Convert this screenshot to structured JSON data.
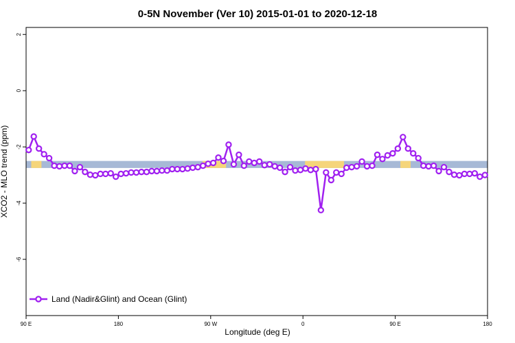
{
  "chart_data": {
    "type": "line",
    "title": "0-5N November (Ver 10)   2015-01-01 to 2020-12-18",
    "x_label": "Longitude (deg E)",
    "y_label": "XCO2 - MLO trend (ppm)",
    "xlim": [
      90,
      540
    ],
    "ylim": [
      -8,
      2.25
    ],
    "xticks": [
      {
        "value": 90,
        "label": "90 E"
      },
      180,
      {
        "value": 270,
        "label": "90 W"
      },
      {
        "value": 360,
        "label": "0"
      },
      {
        "value": 450,
        "label": "90 E"
      },
      {
        "value": 540,
        "label": "180"
      }
    ],
    "yticks": [
      2,
      0,
      -2,
      -4,
      -6
    ],
    "legend": "bottom-left",
    "band": {
      "range": [
        -2.75,
        -2.5
      ],
      "color": "#a7b9d6",
      "land_color": "#f5d57a",
      "land_segments": [
        [
          95,
          105
        ],
        [
          262,
          285
        ],
        [
          362,
          400
        ],
        [
          455,
          465
        ]
      ]
    },
    "x": [
      92.5,
      97.5,
      102.5,
      107.5,
      112.5,
      117.5,
      122.5,
      127.5,
      132.5,
      137.5,
      142.5,
      147.5,
      152.5,
      157.5,
      162.5,
      167.5,
      172.5,
      177.5,
      182.5,
      187.5,
      192.5,
      197.5,
      202.5,
      207.5,
      212.5,
      217.5,
      222.5,
      227.5,
      232.5,
      237.5,
      242.5,
      247.5,
      252.5,
      257.5,
      262.5,
      267.5,
      272.5,
      277.5,
      282.5,
      287.5,
      292.5,
      297.5,
      302.5,
      307.5,
      312.5,
      317.5,
      322.5,
      327.5,
      332.5,
      337.5,
      342.5,
      347.5,
      352.5,
      357.5,
      362.5,
      367.5,
      372.5,
      377.5,
      382.5,
      387.5,
      392.5,
      397.5,
      402.5,
      407.5,
      412.5,
      417.5,
      422.5,
      427.5,
      432.5,
      437.5,
      442.5,
      447.5,
      452.5,
      457.5,
      462.5,
      467.5,
      472.5,
      477.5,
      482.5,
      487.5,
      492.5,
      497.5,
      502.5,
      507.5,
      512.5,
      517.5,
      522.5,
      527.5,
      532.5,
      537.5
    ],
    "series": [
      {
        "name": "Land (Nadir&Glint) and Ocean (Glint)",
        "color": "#a020f0",
        "values": [
          -2.11,
          -1.63,
          -2.06,
          -2.26,
          -2.4,
          -2.67,
          -2.69,
          -2.67,
          -2.67,
          -2.86,
          -2.72,
          -2.89,
          -2.99,
          -3.01,
          -2.96,
          -2.96,
          -2.94,
          -3.06,
          -2.96,
          -2.94,
          -2.91,
          -2.91,
          -2.89,
          -2.89,
          -2.86,
          -2.86,
          -2.84,
          -2.84,
          -2.79,
          -2.79,
          -2.79,
          -2.77,
          -2.74,
          -2.72,
          -2.67,
          -2.6,
          -2.57,
          -2.38,
          -2.5,
          -1.92,
          -2.62,
          -2.28,
          -2.67,
          -2.52,
          -2.57,
          -2.52,
          -2.65,
          -2.62,
          -2.69,
          -2.74,
          -2.89,
          -2.72,
          -2.84,
          -2.82,
          -2.77,
          -2.82,
          -2.79,
          -4.25,
          -2.91,
          -3.18,
          -2.91,
          -2.96,
          -2.74,
          -2.72,
          -2.69,
          -2.52,
          -2.69,
          -2.67,
          -2.28,
          -2.43,
          -2.3,
          -2.23,
          -2.06,
          -1.65,
          -2.06,
          -2.23,
          -2.4,
          -2.67,
          -2.69,
          -2.67,
          -2.86,
          -2.72,
          -2.89,
          -2.99,
          -3.01,
          -2.96,
          -2.96,
          -2.94,
          -3.06,
          -3.0
        ]
      }
    ]
  }
}
